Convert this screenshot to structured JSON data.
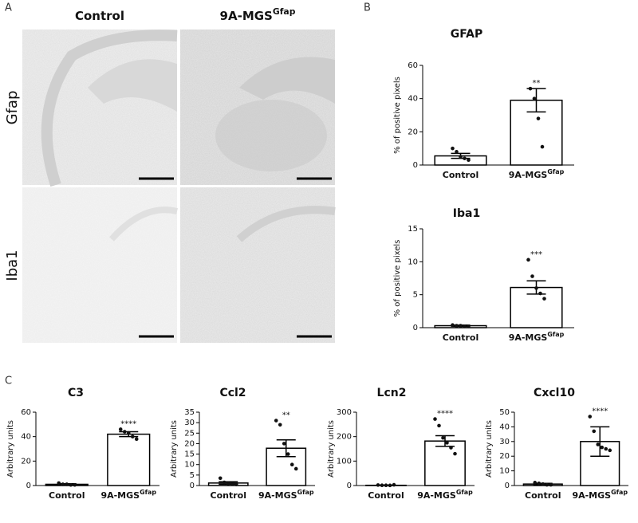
{
  "panel_labels": [
    "A",
    "B",
    "C"
  ],
  "images": {
    "columns": [
      {
        "text": "Control",
        "sup": null
      },
      {
        "text": "9A-MGS",
        "sup": "Gfap"
      }
    ],
    "rows": [
      "Gfap",
      "Iba1"
    ]
  },
  "chart_data": [
    {
      "type": "bar",
      "title": "GFAP",
      "ylabel": "% of positive pixels",
      "categories": [
        "Control",
        "9A-MGS"
      ],
      "superscripts": [
        null,
        "Gfap"
      ],
      "values": [
        5.5,
        39
      ],
      "errors": [
        1.5,
        7
      ],
      "points": [
        [
          10,
          8,
          5,
          4,
          3
        ],
        [
          46,
          40,
          28,
          11
        ]
      ],
      "annotation": "**",
      "color": "#ffffff",
      "ylim": [
        0,
        60
      ],
      "yticks": [
        0,
        20,
        40,
        60
      ]
    },
    {
      "type": "bar",
      "title": "Iba1",
      "ylabel": "% of positive pixels",
      "categories": [
        "Control",
        "9A-MGS"
      ],
      "superscripts": [
        null,
        "Gfap"
      ],
      "values": [
        0.3,
        6.1
      ],
      "errors": [
        0.1,
        1.0
      ],
      "points": [
        [
          0.4,
          0.3,
          0.3,
          0.2,
          0.2
        ],
        [
          10.3,
          7.8,
          6.0,
          5.2,
          4.4
        ]
      ],
      "annotation": "***",
      "color": "#ffffff",
      "ylim": [
        0,
        15
      ],
      "yticks": [
        0,
        5,
        10,
        15
      ]
    },
    {
      "type": "bar",
      "title": "C3",
      "ylabel": "Arbitrary units",
      "categories": [
        "Control",
        "9A-MGS"
      ],
      "superscripts": [
        null,
        "Gfap"
      ],
      "values": [
        1,
        42
      ],
      "errors": [
        0.5,
        2
      ],
      "points": [
        [
          2,
          1,
          1,
          0.5,
          0.5
        ],
        [
          46,
          44,
          43,
          40,
          38
        ]
      ],
      "annotation": "****",
      "color": "#ffffff",
      "ylim": [
        0,
        60
      ],
      "yticks": [
        0,
        20,
        40,
        60
      ]
    },
    {
      "type": "bar",
      "title": "Ccl2",
      "ylabel": "Arbitrary units",
      "categories": [
        "Control",
        "9A-MGS"
      ],
      "superscripts": [
        null,
        "Gfap"
      ],
      "values": [
        1.2,
        17.8
      ],
      "errors": [
        0.6,
        4
      ],
      "points": [
        [
          3.5,
          1.5,
          1,
          0.8,
          0.5
        ],
        [
          31,
          29,
          20,
          15,
          10,
          8
        ]
      ],
      "annotation": "**",
      "color": "#ffffff",
      "ylim": [
        0,
        35
      ],
      "yticks": [
        0,
        5,
        10,
        15,
        20,
        25,
        30,
        35
      ]
    },
    {
      "type": "bar",
      "title": "Lcn2",
      "ylabel": "Arbitrary units",
      "categories": [
        "Control",
        "9A-MGS"
      ],
      "superscripts": [
        null,
        "Gfap"
      ],
      "values": [
        1,
        182
      ],
      "errors": [
        0.5,
        22
      ],
      "points": [
        [
          2,
          1,
          1,
          0.5,
          3
        ],
        [
          272,
          245,
          195,
          175,
          155,
          130
        ]
      ],
      "annotation": "****",
      "color": "#ffffff",
      "ylim": [
        0,
        300
      ],
      "yticks": [
        0,
        100,
        200,
        300
      ]
    },
    {
      "type": "bar",
      "title": "Cxcl10",
      "ylabel": "Arbitrary units",
      "categories": [
        "Control",
        "9A-MGS"
      ],
      "superscripts": [
        null,
        "Gfap"
      ],
      "values": [
        1,
        30
      ],
      "errors": [
        0.5,
        10
      ],
      "points": [
        [
          2,
          1.5,
          1,
          0.5,
          0.5
        ],
        [
          47,
          37,
          28,
          26,
          25,
          24
        ]
      ],
      "annotation": "****",
      "color": "#ffffff",
      "ylim": [
        0,
        50
      ],
      "yticks": [
        0,
        10,
        20,
        30,
        40,
        50
      ]
    }
  ]
}
